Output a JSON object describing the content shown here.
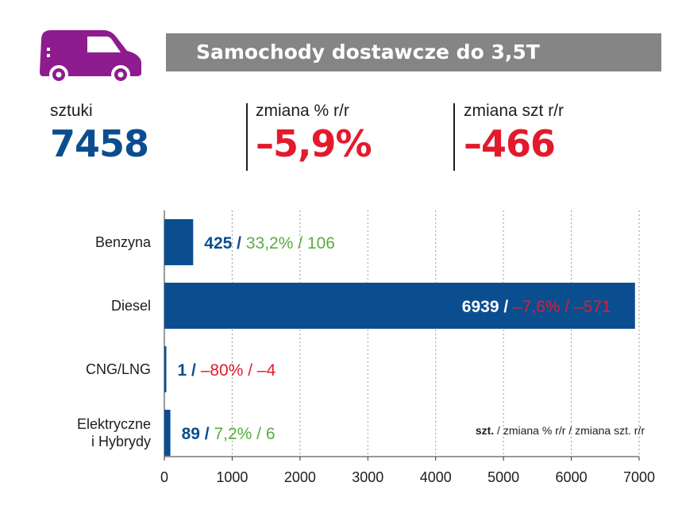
{
  "header": {
    "title": "Samochody dostawcze do 3,5T",
    "icon": "van-icon",
    "colors": {
      "title_bar": "#858585",
      "van": "#8e1c8f"
    }
  },
  "kpis": [
    {
      "label": "sztuki",
      "value": "7458",
      "color": "#0b4e8f"
    },
    {
      "label": "zmiana % r/r",
      "value": "–5,9%",
      "color": "#e31a2c"
    },
    {
      "label": "zmiana szt r/r",
      "value": "–466",
      "color": "#e31a2c"
    }
  ],
  "chart_data": {
    "type": "bar",
    "orientation": "horizontal",
    "categories": [
      "Benzyna",
      "Diesel",
      "CNG/LNG",
      "Elektryczne\ni Hybrydy"
    ],
    "values": [
      425,
      6939,
      1,
      89
    ],
    "labels": [
      {
        "count": "425",
        "sep": " / ",
        "change": "33,2% / 106",
        "trend": "up"
      },
      {
        "count": "6939",
        "sep": " / ",
        "change": "–7,6% / –571",
        "trend": "down"
      },
      {
        "count": "1",
        "sep": " / ",
        "change": " –80% / –4",
        "trend": "down"
      },
      {
        "count": "89",
        "sep": " / ",
        "change": "7,2% / 6",
        "trend": "up"
      }
    ],
    "xlim": [
      0,
      7000
    ],
    "xticks": [
      "0",
      "1000",
      "2000",
      "3000",
      "4000",
      "5000",
      "6000",
      "7000"
    ],
    "grid": "vertical dashed",
    "legend": {
      "bold": "szt.",
      "rest": " / zmiana % r/r / zmiana szt. r/r",
      "placement": "bottom-right"
    },
    "colors": {
      "bar": "#0b4e8f",
      "up": "#5aac3e",
      "down": "#e31a2c",
      "count": "#0b4e8f"
    }
  }
}
